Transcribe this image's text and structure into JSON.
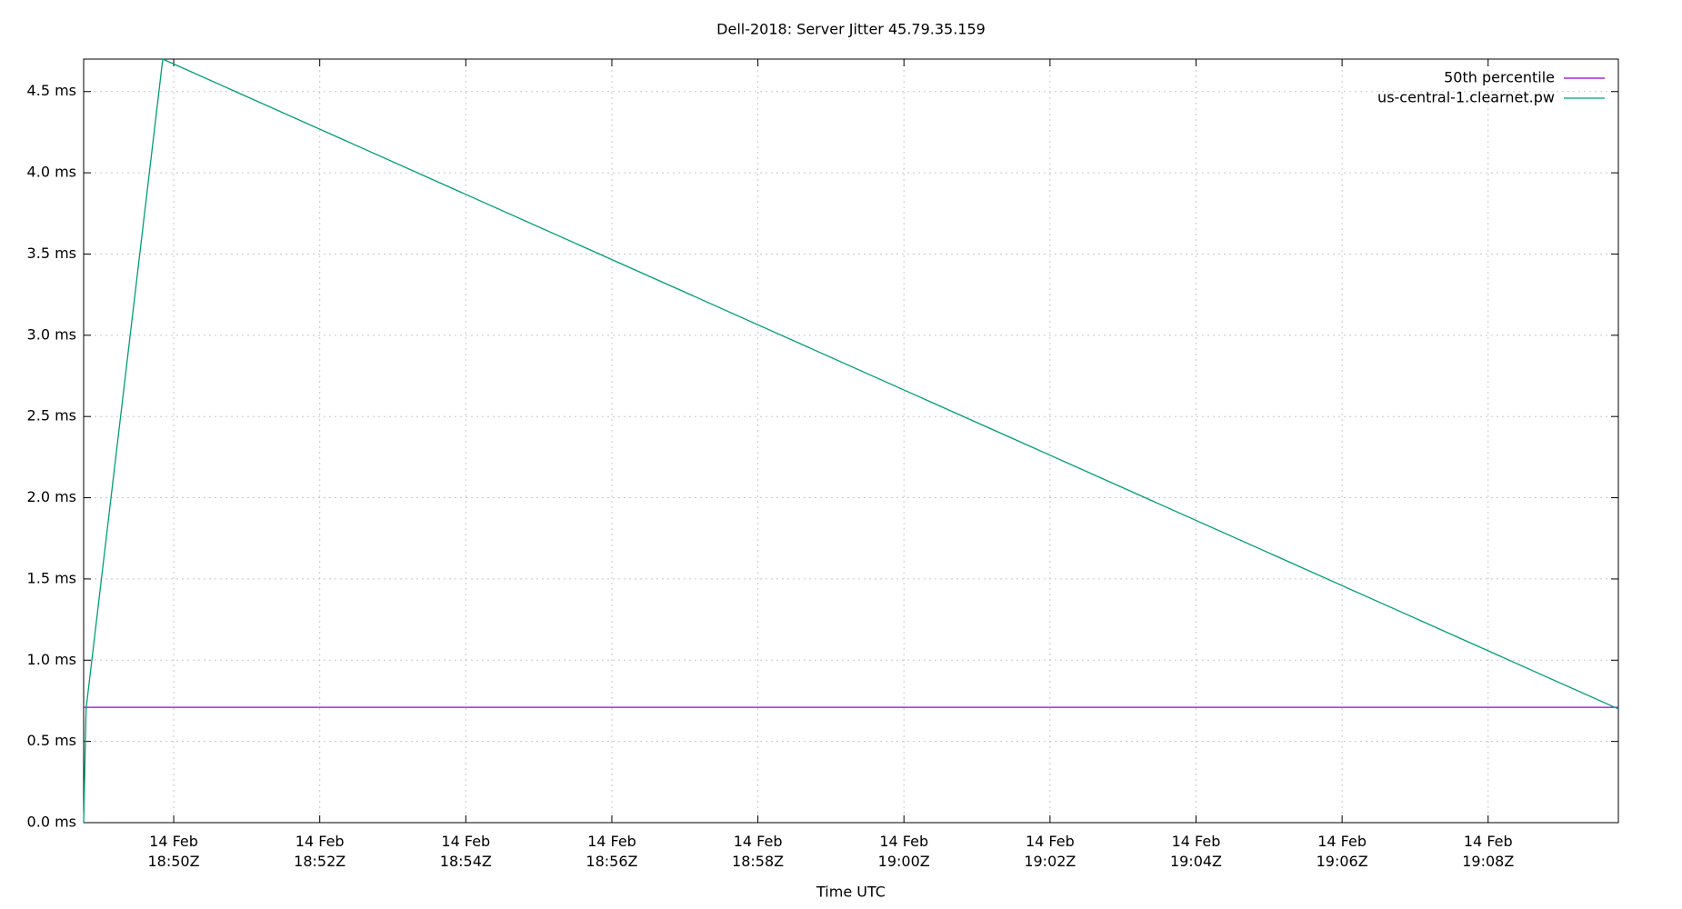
{
  "chart_data": {
    "type": "line",
    "title": "Dell-2018: Server Jitter 45.79.35.159",
    "x_label": "Time UTC",
    "series": [
      {
        "name": "50th percentile",
        "color": "#9400d3",
        "x": [
          "18:48:46Z",
          "19:09:47Z"
        ],
        "values": [
          0.71,
          0.71
        ]
      },
      {
        "name": "us-central-1.clearnet.pw",
        "color": "#009e73",
        "x": [
          "18:48:46Z",
          "18:48:48Z",
          "18:49:51Z",
          "19:09:47Z"
        ],
        "values": [
          0.0,
          0.7,
          4.7,
          0.7
        ]
      }
    ],
    "xlim": [
      "18:48:46Z",
      "19:09:47Z"
    ],
    "xticks": [
      {
        "value": "18:50:00Z",
        "label": "14 Feb\n18:50Z"
      },
      {
        "value": "18:52:00Z",
        "label": "14 Feb\n18:52Z"
      },
      {
        "value": "18:54:00Z",
        "label": "14 Feb\n18:54Z"
      },
      {
        "value": "18:56:00Z",
        "label": "14 Feb\n18:56Z"
      },
      {
        "value": "18:58:00Z",
        "label": "14 Feb\n18:58Z"
      },
      {
        "value": "19:00:00Z",
        "label": "14 Feb\n19:00Z"
      },
      {
        "value": "19:02:00Z",
        "label": "14 Feb\n19:02Z"
      },
      {
        "value": "19:04:00Z",
        "label": "14 Feb\n19:04Z"
      },
      {
        "value": "19:06:00Z",
        "label": "14 Feb\n19:06Z"
      },
      {
        "value": "19:08:00Z",
        "label": "14 Feb\n19:08Z"
      }
    ],
    "ylim": [
      0,
      4.7
    ],
    "yticks": [
      {
        "value": 0,
        "label": "0.0 ms"
      },
      {
        "value": 0.5,
        "label": "0.5 ms"
      },
      {
        "value": 1,
        "label": "1.0 ms"
      },
      {
        "value": 1.5,
        "label": "1.5 ms"
      },
      {
        "value": 2,
        "label": "2.0 ms"
      },
      {
        "value": 2.5,
        "label": "2.5 ms"
      },
      {
        "value": 3,
        "label": "3.0 ms"
      },
      {
        "value": 3.5,
        "label": "3.5 ms"
      },
      {
        "value": 4,
        "label": "4.0 ms"
      },
      {
        "value": 4.5,
        "label": "4.5 ms"
      }
    ],
    "grid": true,
    "legend": "top-right"
  }
}
